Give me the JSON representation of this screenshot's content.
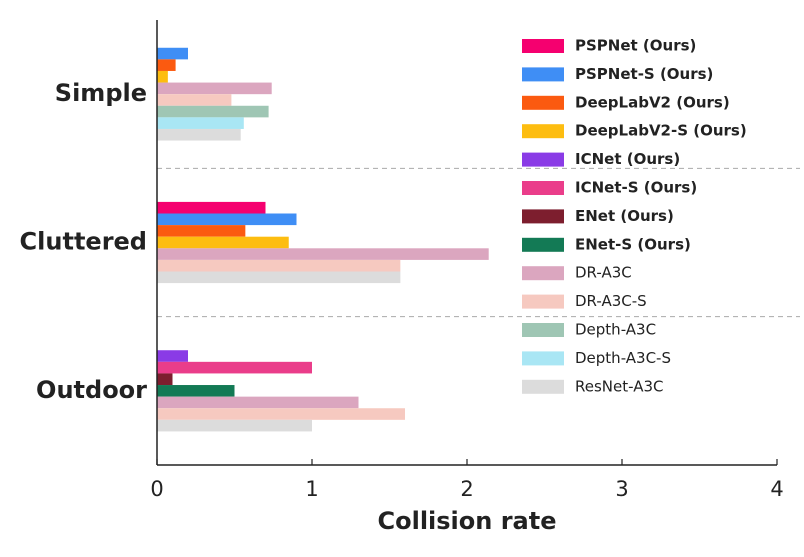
{
  "chart_data": {
    "type": "bar",
    "orientation": "horizontal",
    "xlabel": "Collision rate",
    "categories": [
      "Simple",
      "Cluttered",
      "Outdoor"
    ],
    "xlim": [
      0,
      4
    ],
    "xticks": [
      0,
      1,
      2,
      3,
      4
    ],
    "legend": "upper right",
    "series": [
      {
        "name": "PSPNet (Ours)",
        "color": "#f5006f",
        "values": [
          null,
          0.7,
          null
        ]
      },
      {
        "name": "PSPNet-S (Ours)",
        "color": "#3f8ef5",
        "values": [
          0.2,
          0.9,
          null
        ]
      },
      {
        "name": "DeepLabV2 (Ours)",
        "color": "#fb5a10",
        "values": [
          0.12,
          0.57,
          null
        ]
      },
      {
        "name": "DeepLabV2-S (Ours)",
        "color": "#fdbd10",
        "values": [
          0.07,
          0.85,
          null
        ]
      },
      {
        "name": "ICNet (Ours)",
        "color": "#8a3be6",
        "values": [
          null,
          null,
          0.2
        ]
      },
      {
        "name": "ICNet-S (Ours)",
        "color": "#ea3d8a",
        "values": [
          null,
          null,
          1.0
        ]
      },
      {
        "name": "ENet (Ours)",
        "color": "#7d1e2e",
        "values": [
          null,
          null,
          0.1
        ]
      },
      {
        "name": "ENet-S (Ours)",
        "color": "#137a55",
        "values": [
          null,
          null,
          0.5
        ]
      },
      {
        "name": "DR-A3C",
        "color": "#dba6bf",
        "values": [
          0.74,
          2.14,
          1.3
        ]
      },
      {
        "name": "DR-A3C-S",
        "color": "#f6c9c0",
        "values": [
          0.48,
          1.57,
          1.6
        ]
      },
      {
        "name": "Depth-A3C",
        "color": "#9fc6b4",
        "values": [
          0.72,
          null,
          null
        ]
      },
      {
        "name": "Depth-A3C-S",
        "color": "#a9e6f4",
        "values": [
          0.56,
          null,
          null
        ]
      },
      {
        "name": "ResNet-A3C",
        "color": "#dcdcdc",
        "values": [
          0.54,
          1.57,
          1.0
        ]
      }
    ]
  }
}
